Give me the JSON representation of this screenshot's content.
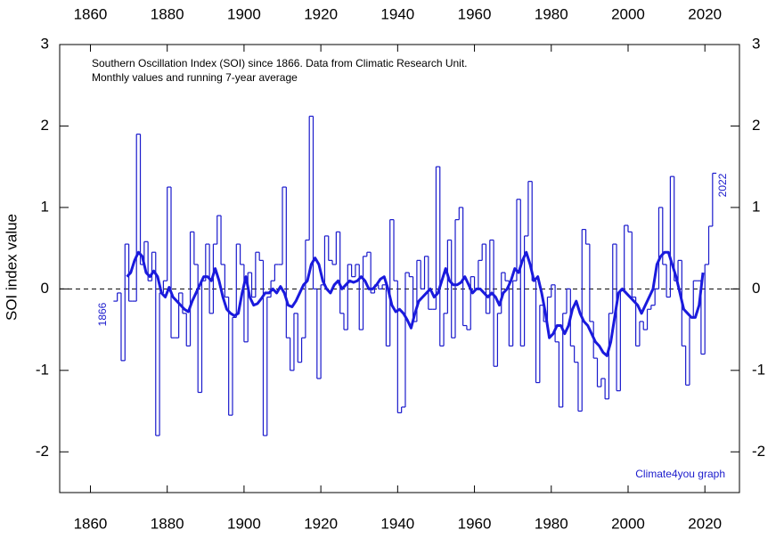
{
  "chart_data": {
    "type": "step-line",
    "title": "Southern Oscillation Index (SOI) since 1866. Data from Climatic Research Unit.",
    "subtitle": "Monthly values and running 7-year average",
    "y_label": "SOI index value",
    "annotations": [
      "1866",
      "2022",
      "Climate4you graph"
    ],
    "xlim": [
      1852,
      2029
    ],
    "ylim": [
      -2.5,
      3
    ],
    "xticks": [
      1860,
      1880,
      1900,
      1920,
      1940,
      1960,
      1980,
      2000,
      2020
    ],
    "yticks": [
      -2,
      -1,
      0,
      1,
      2,
      3
    ],
    "zero_line": true,
    "x": [
      1866,
      1867,
      1868,
      1869,
      1870,
      1871,
      1872,
      1873,
      1874,
      1875,
      1876,
      1877,
      1878,
      1879,
      1880,
      1881,
      1882,
      1883,
      1884,
      1885,
      1886,
      1887,
      1888,
      1889,
      1890,
      1891,
      1892,
      1893,
      1894,
      1895,
      1896,
      1897,
      1898,
      1899,
      1900,
      1901,
      1902,
      1903,
      1904,
      1905,
      1906,
      1907,
      1908,
      1909,
      1910,
      1911,
      1912,
      1913,
      1914,
      1915,
      1916,
      1917,
      1918,
      1919,
      1920,
      1921,
      1922,
      1923,
      1924,
      1925,
      1926,
      1927,
      1928,
      1929,
      1930,
      1931,
      1932,
      1933,
      1934,
      1935,
      1936,
      1937,
      1938,
      1939,
      1940,
      1941,
      1942,
      1943,
      1944,
      1945,
      1946,
      1947,
      1948,
      1949,
      1950,
      1951,
      1952,
      1953,
      1954,
      1955,
      1956,
      1957,
      1958,
      1959,
      1960,
      1961,
      1962,
      1963,
      1964,
      1965,
      1966,
      1967,
      1968,
      1969,
      1970,
      1971,
      1972,
      1973,
      1974,
      1975,
      1976,
      1977,
      1978,
      1979,
      1980,
      1981,
      1982,
      1983,
      1984,
      1985,
      1986,
      1987,
      1988,
      1989,
      1990,
      1991,
      1992,
      1993,
      1994,
      1995,
      1996,
      1997,
      1998,
      1999,
      2000,
      2001,
      2002,
      2003,
      2004,
      2005,
      2006,
      2007,
      2008,
      2009,
      2010,
      2011,
      2012,
      2013,
      2014,
      2015,
      2016,
      2017,
      2018,
      2019,
      2020,
      2021,
      2022
    ],
    "series": [
      {
        "name": "Monthly values",
        "color": "#1a1acc",
        "style": "step",
        "values": [
          -0.15,
          -0.05,
          -0.88,
          0.55,
          -0.15,
          -0.15,
          1.9,
          0.3,
          0.58,
          0.1,
          0.45,
          -1.8,
          -0.05,
          0.1,
          1.25,
          -0.6,
          -0.6,
          -0.05,
          -0.3,
          -0.7,
          0.7,
          0.3,
          -1.27,
          0.1,
          0.55,
          -0.3,
          0.55,
          0.9,
          0.3,
          -0.1,
          -1.55,
          -0.35,
          0.55,
          0.3,
          -0.65,
          0.2,
          -0.1,
          0.45,
          0.35,
          -1.8,
          -0.1,
          0.1,
          0.3,
          0.3,
          1.25,
          -0.6,
          -1.0,
          -0.3,
          -0.9,
          -0.6,
          0.6,
          2.12,
          0.0,
          -1.1,
          0.05,
          0.65,
          0.35,
          0.3,
          0.7,
          -0.3,
          -0.5,
          0.3,
          0.15,
          0.3,
          -0.5,
          0.4,
          0.45,
          -0.05,
          0.05,
          0.0,
          0.05,
          -0.7,
          0.85,
          0.1,
          -1.52,
          -1.45,
          0.2,
          0.15,
          -0.4,
          0.35,
          0.0,
          0.4,
          -0.25,
          -0.25,
          1.5,
          -0.7,
          -0.3,
          0.6,
          -0.6,
          0.85,
          1.0,
          -0.45,
          -0.5,
          0.15,
          0.0,
          0.35,
          0.55,
          -0.3,
          0.6,
          -0.95,
          -0.3,
          0.2,
          0.1,
          -0.7,
          0.1,
          1.1,
          -0.7,
          0.65,
          1.32,
          0.1,
          -1.15,
          -0.2,
          -0.4,
          -0.1,
          0.05,
          -0.65,
          -1.45,
          -0.3,
          0.0,
          -0.7,
          -0.9,
          -1.5,
          0.73,
          0.55,
          -0.4,
          -0.85,
          -1.2,
          -1.1,
          -1.35,
          -0.3,
          0.55,
          -1.25,
          0.0,
          0.78,
          0.7,
          -0.1,
          -0.7,
          -0.4,
          -0.5,
          -0.25,
          -0.2,
          0.0,
          1.0,
          0.3,
          -0.1,
          1.38,
          0.1,
          0.35,
          -0.7,
          -1.18,
          -0.35,
          0.1,
          0.1,
          -0.8,
          0.3,
          0.77,
          1.42
        ]
      },
      {
        "name": "Running 7-year average",
        "color": "#1a1add",
        "style": "line",
        "values": [
          null,
          null,
          null,
          0.15,
          0.2,
          0.35,
          0.45,
          0.4,
          0.2,
          0.15,
          0.22,
          0.15,
          -0.05,
          -0.1,
          0.02,
          -0.1,
          -0.15,
          -0.2,
          -0.25,
          -0.28,
          -0.15,
          -0.05,
          0.05,
          0.15,
          0.15,
          0.1,
          0.25,
          0.1,
          -0.1,
          -0.25,
          -0.3,
          -0.33,
          -0.3,
          -0.05,
          0.15,
          -0.1,
          -0.2,
          -0.18,
          -0.12,
          -0.05,
          -0.05,
          0.0,
          -0.05,
          0.03,
          -0.05,
          -0.2,
          -0.22,
          -0.15,
          -0.05,
          0.05,
          0.1,
          0.3,
          0.38,
          0.3,
          0.1,
          0.0,
          -0.05,
          0.05,
          0.1,
          0.0,
          0.05,
          0.1,
          0.08,
          0.1,
          0.15,
          0.1,
          0.0,
          0.0,
          0.05,
          0.12,
          0.15,
          0.0,
          -0.2,
          -0.28,
          -0.25,
          -0.3,
          -0.38,
          -0.48,
          -0.3,
          -0.15,
          -0.1,
          -0.05,
          0.0,
          -0.1,
          -0.05,
          0.1,
          0.25,
          0.1,
          0.05,
          0.05,
          0.08,
          0.15,
          0.05,
          -0.05,
          0.0,
          0.0,
          -0.05,
          -0.1,
          -0.05,
          -0.1,
          -0.2,
          -0.05,
          0.0,
          0.1,
          0.25,
          0.2,
          0.35,
          0.45,
          0.3,
          0.1,
          0.15,
          -0.05,
          -0.3,
          -0.6,
          -0.55,
          -0.45,
          -0.45,
          -0.55,
          -0.45,
          -0.25,
          -0.15,
          -0.3,
          -0.4,
          -0.45,
          -0.55,
          -0.65,
          -0.7,
          -0.78,
          -0.82,
          -0.65,
          -0.35,
          -0.05,
          0.0,
          -0.05,
          -0.1,
          -0.15,
          -0.2,
          -0.3,
          -0.2,
          -0.1,
          0.0,
          0.3,
          0.4,
          0.45,
          0.45,
          0.3,
          0.15,
          -0.05,
          -0.25,
          -0.3,
          -0.35,
          -0.35,
          -0.2,
          0.2,
          null,
          null,
          null
        ]
      }
    ]
  }
}
